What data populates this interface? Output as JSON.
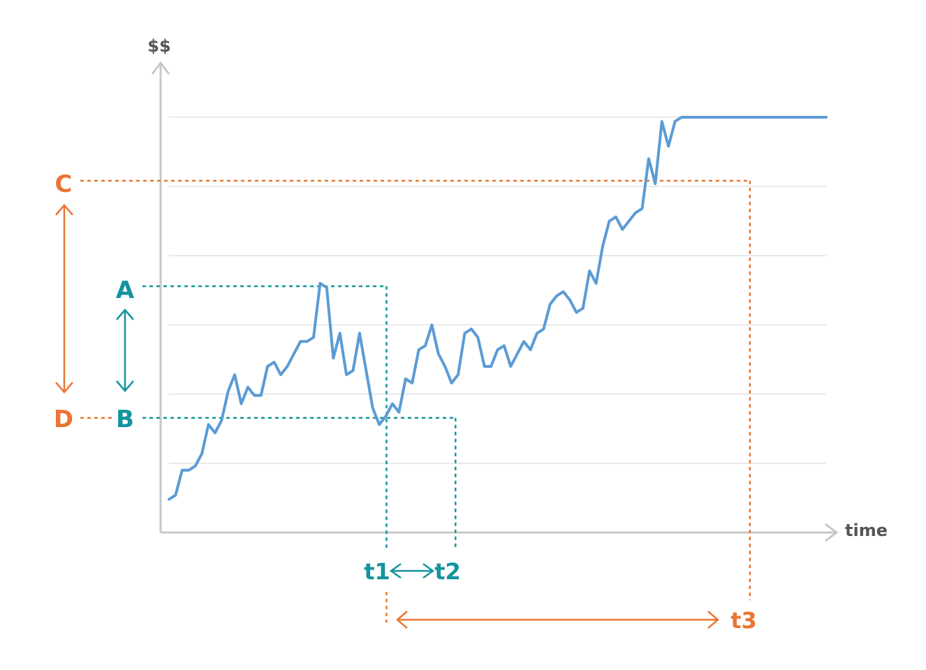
{
  "colors": {
    "price": "#5b9bd5",
    "teal": "#13939e",
    "orange": "#ea7534",
    "axis": "#c8c8c8",
    "grid": "#e2e2e2",
    "axis_text": "#555555"
  },
  "chart_data": {
    "type": "line",
    "title": "",
    "xlabel": "time",
    "ylabel": "$$",
    "x_range": [
      0,
      100
    ],
    "y_range": [
      0,
      100
    ],
    "grid": "horizontal",
    "gridlines_y": [
      16.67,
      33.33,
      50,
      66.67,
      83.33,
      100
    ],
    "series": [
      {
        "x": [
          0,
          1,
          2,
          3,
          4,
          5,
          6,
          7,
          8,
          9,
          10,
          11,
          12,
          13,
          14,
          15,
          16,
          17,
          18,
          19,
          20,
          21,
          22,
          23,
          24,
          25,
          26,
          27,
          28,
          29,
          30,
          31,
          32,
          33,
          34,
          35,
          36,
          37,
          38,
          39,
          40,
          41,
          42,
          43,
          44,
          45,
          46,
          47,
          48,
          49,
          50,
          51,
          52,
          53,
          54,
          55,
          56,
          57,
          58,
          59,
          60,
          61,
          62,
          63,
          64,
          65,
          66,
          67,
          68,
          69,
          70,
          71,
          72,
          73,
          74,
          75,
          76,
          77,
          78,
          79,
          80,
          81,
          82,
          83,
          84,
          85,
          86,
          87,
          88,
          89,
          90,
          91,
          92,
          93,
          94,
          95,
          96,
          97,
          98,
          99,
          100
        ],
        "y": [
          8,
          9,
          15,
          15,
          16,
          19,
          26,
          24,
          27,
          34,
          38,
          31,
          35,
          33,
          33,
          40,
          41,
          38,
          40,
          43,
          46,
          46,
          47,
          60,
          59,
          42,
          48,
          38,
          39,
          48,
          39,
          30,
          26,
          28,
          31,
          29,
          37,
          36,
          44,
          45,
          50,
          43,
          40,
          36,
          38,
          48,
          49,
          47,
          40,
          40,
          44,
          45,
          40,
          43,
          46,
          44,
          48,
          49,
          55,
          57,
          58,
          56,
          53,
          54,
          63,
          60,
          69,
          75,
          76,
          73,
          75,
          77,
          78,
          90,
          84,
          99,
          93,
          99,
          100,
          100,
          100,
          100,
          100,
          100,
          100,
          100,
          100,
          100,
          100,
          100,
          100,
          100,
          100,
          100,
          100,
          100,
          100,
          100,
          100,
          100,
          100
        ]
      }
    ],
    "markers": {
      "A": {
        "y": 59.3
      },
      "B": {
        "y": 27.6
      },
      "C": {
        "y": 84.7
      },
      "D": {
        "y": 27.6
      },
      "t1": {
        "x": 33.1
      },
      "t2": {
        "x": 43.6
      },
      "t3": {
        "x": 88.4
      }
    }
  },
  "labels": {
    "y_axis": "$$",
    "x_axis": "time",
    "a": "A",
    "b": "B",
    "c": "C",
    "d": "D",
    "t1": "t1",
    "t2": "t2",
    "t3": "t3"
  }
}
